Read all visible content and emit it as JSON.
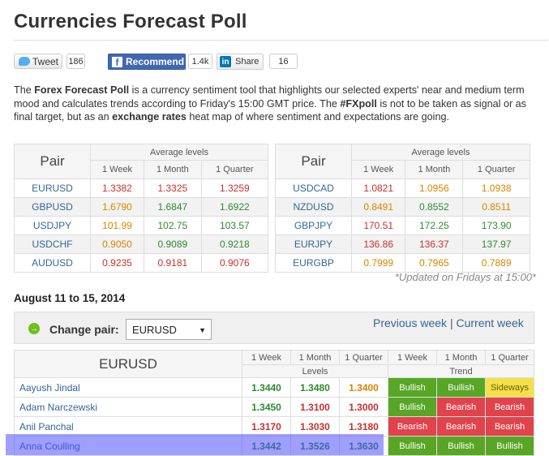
{
  "page": {
    "title": "Currencies Forecast Poll"
  },
  "social": {
    "tweet_label": "Tweet",
    "tweet_count": "186",
    "fb_label": "Recommend",
    "fb_count": "1.4k",
    "li_label": "Share",
    "li_count": "16"
  },
  "intro": {
    "t1": "The ",
    "b1": "Forex Forecast Poll",
    "t2": " is a currency sentiment tool that highlights our selected experts' near and medium term mood and calculates trends according to Friday's 15:00 GMT price. The ",
    "b2": "#FXpoll",
    "t3": " is not to be taken as signal or as final target, but as an ",
    "b3": "exchange rates",
    "t4": " heat map of where sentiment and expectations are going."
  },
  "summary": {
    "pair_header": "Pair",
    "avg_header": "Average levels",
    "periods": [
      "1 Week",
      "1 Month",
      "1 Quarter"
    ],
    "left": [
      {
        "pair": "EURUSD",
        "w": "1.3382",
        "m": "1.3325",
        "q": "1.3259",
        "cw": "red",
        "cm": "red",
        "cq": "red"
      },
      {
        "pair": "GBPUSD",
        "w": "1.6790",
        "m": "1.6847",
        "q": "1.6922",
        "cw": "orange",
        "cm": "green",
        "cq": "green"
      },
      {
        "pair": "USDJPY",
        "w": "101.99",
        "m": "102.75",
        "q": "103.57",
        "cw": "orange",
        "cm": "green",
        "cq": "green"
      },
      {
        "pair": "USDCHF",
        "w": "0.9050",
        "m": "0.9089",
        "q": "0.9218",
        "cw": "orange",
        "cm": "green",
        "cq": "green"
      },
      {
        "pair": "AUDUSD",
        "w": "0.9235",
        "m": "0.9181",
        "q": "0.9076",
        "cw": "red",
        "cm": "red",
        "cq": "red"
      }
    ],
    "right": [
      {
        "pair": "USDCAD",
        "w": "1.0821",
        "m": "1.0956",
        "q": "1.0938",
        "cw": "red",
        "cm": "orange",
        "cq": "orange"
      },
      {
        "pair": "NZDUSD",
        "w": "0.8491",
        "m": "0.8552",
        "q": "0.8511",
        "cw": "orange",
        "cm": "green",
        "cq": "orange"
      },
      {
        "pair": "GBPJPY",
        "w": "170.51",
        "m": "172.25",
        "q": "173.90",
        "cw": "red",
        "cm": "green",
        "cq": "green"
      },
      {
        "pair": "EURJPY",
        "w": "136.86",
        "m": "136.37",
        "q": "137.97",
        "cw": "red",
        "cm": "red",
        "cq": "green"
      },
      {
        "pair": "EURGBP",
        "w": "0.7999",
        "m": "0.7965",
        "q": "0.7889",
        "cw": "orange",
        "cm": "orange",
        "cq": "orange"
      }
    ],
    "updated_note": "*Updated on Fridays at 15:00*"
  },
  "week_title": "August 11 to 15, 2014",
  "change_pair": {
    "go_icon": "→",
    "label": "Change pair:",
    "selected": "EURUSD",
    "prev_week": "Previous week",
    "separator": "|",
    "current_week": "Current week"
  },
  "detail": {
    "pair": "EURUSD",
    "periods": [
      "1 Week",
      "1 Month",
      "1 Quarter"
    ],
    "levels_header": "Levels",
    "trend_header": "Trend",
    "rows": [
      {
        "name": "Aayush Jindal",
        "w": "1.3440",
        "m": "1.3480",
        "q": "1.3400",
        "cw": "green",
        "cm": "green",
        "cq": "orange",
        "tw": "Bullish",
        "tm": "Bullish",
        "tq": "Sideways",
        "kw": "bull",
        "km": "bull",
        "kq": "side"
      },
      {
        "name": "Adam Narczewski",
        "w": "1.3450",
        "m": "1.3100",
        "q": "1.3000",
        "cw": "green",
        "cm": "red",
        "cq": "red",
        "tw": "Bullish",
        "tm": "Bearish",
        "tq": "Bearish",
        "kw": "bull",
        "km": "bear",
        "kq": "bear"
      },
      {
        "name": "Anil Panchal",
        "w": "1.3170",
        "m": "1.3030",
        "q": "1.3180",
        "cw": "red",
        "cm": "red",
        "cq": "red",
        "tw": "Bearish",
        "tm": "Bearish",
        "tq": "Bearish",
        "kw": "bear",
        "km": "bear",
        "kq": "bear"
      },
      {
        "name": "Anna Coulling",
        "w": "1.3442",
        "m": "1.3526",
        "q": "1.3630",
        "cw": "green",
        "cm": "green",
        "cq": "green",
        "tw": "Bullish",
        "tm": "Bullish",
        "tq": "Bullish",
        "kw": "bull",
        "km": "bull",
        "kq": "bull"
      }
    ]
  }
}
